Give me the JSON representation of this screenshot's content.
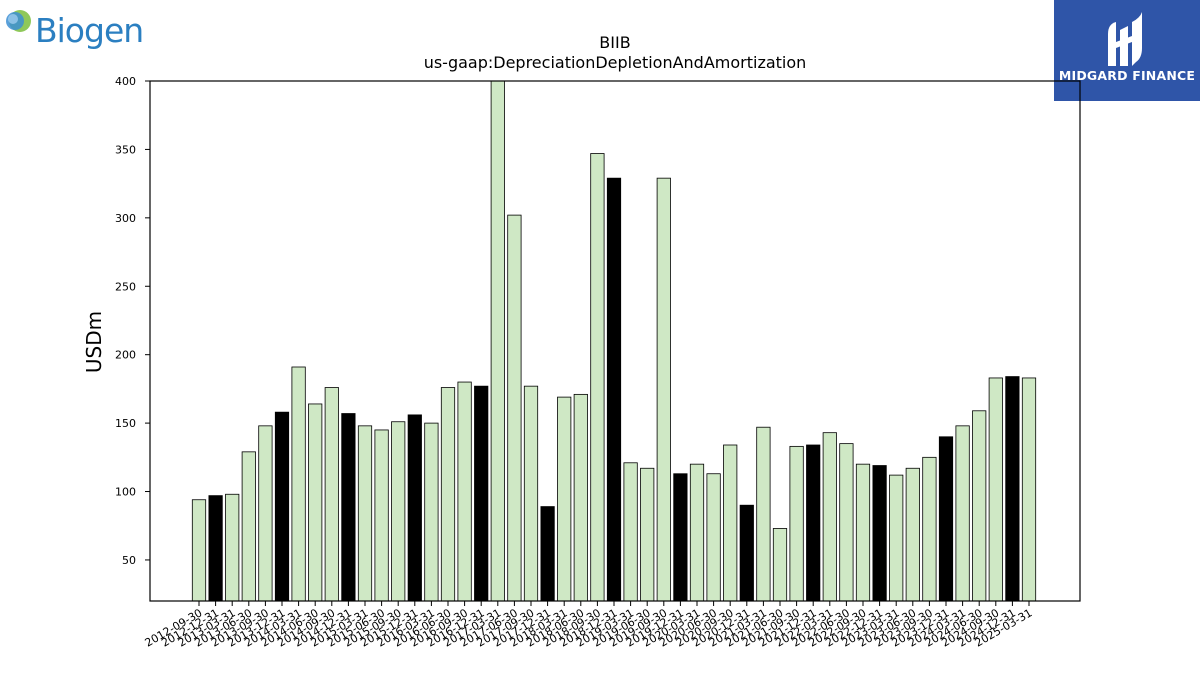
{
  "logos": {
    "left_brand": "Biogen",
    "right_brand": "MIDGARD FINANCE"
  },
  "colors": {
    "bar_light": "#cfe8c5",
    "bar_dark": "#000000",
    "midgard_bg": "#2f55a8",
    "biogen_blue": "#2b7fc1"
  },
  "chart_data": {
    "type": "bar",
    "title": "BIIB",
    "subtitle": "us-gaap:DepreciationDepletionAndAmortization",
    "xlabel": "",
    "ylabel": "USDm",
    "ylim": [
      20,
      400
    ],
    "yticks": [
      50,
      100,
      150,
      200,
      250,
      300,
      350,
      400
    ],
    "grid": false,
    "legend": "none",
    "categories": [
      "2012-09-30",
      "2012-12-31",
      "2013-03-31",
      "2013-06-30",
      "2013-09-30",
      "2013-12-31",
      "2014-03-31",
      "2014-06-30",
      "2014-09-30",
      "2014-12-31",
      "2015-03-31",
      "2015-06-30",
      "2015-09-30",
      "2015-12-31",
      "2016-03-31",
      "2016-06-30",
      "2016-09-30",
      "2016-12-31",
      "2017-03-31",
      "2017-06-30",
      "2017-09-30",
      "2017-12-31",
      "2018-03-31",
      "2018-06-30",
      "2018-09-30",
      "2018-12-31",
      "2019-03-31",
      "2019-06-30",
      "2019-09-30",
      "2019-12-31",
      "2020-03-31",
      "2020-06-30",
      "2020-09-30",
      "2020-12-31",
      "2021-03-31",
      "2021-06-30",
      "2021-09-30",
      "2021-12-31",
      "2022-03-31",
      "2022-06-30",
      "2022-09-30",
      "2022-12-31",
      "2023-03-31",
      "2023-06-30",
      "2023-09-30",
      "2023-12-31",
      "2024-03-31",
      "2024-06-30",
      "2024-09-30",
      "2024-12-31",
      "2025-03-31"
    ],
    "values": [
      94,
      97,
      98,
      129,
      148,
      158,
      191,
      164,
      176,
      157,
      148,
      145,
      151,
      156,
      150,
      176,
      180,
      177,
      402,
      302,
      177,
      89,
      169,
      171,
      347,
      329,
      121,
      117,
      329,
      113,
      120,
      113,
      134,
      90,
      147,
      73,
      133,
      134,
      143,
      135,
      120,
      119,
      112,
      117,
      125,
      140,
      148,
      159,
      183,
      184,
      183
    ],
    "highlight": [
      false,
      true,
      false,
      false,
      false,
      true,
      false,
      false,
      false,
      true,
      false,
      false,
      false,
      true,
      false,
      false,
      false,
      true,
      false,
      false,
      false,
      true,
      false,
      false,
      false,
      true,
      false,
      false,
      false,
      true,
      false,
      false,
      false,
      true,
      false,
      false,
      false,
      true,
      false,
      false,
      false,
      true,
      false,
      false,
      false,
      true,
      false,
      false,
      false,
      true,
      false
    ]
  }
}
